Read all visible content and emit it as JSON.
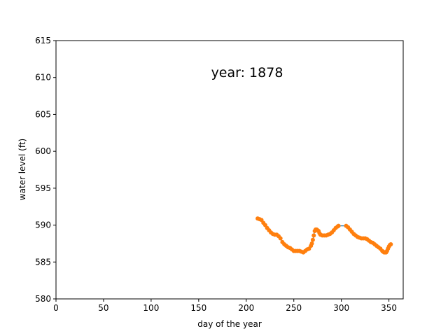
{
  "chart_data": {
    "type": "scatter",
    "title": "",
    "annotation": "year: 1878",
    "xlabel": "day of the year",
    "ylabel": "water level (ft)",
    "xlim": [
      0,
      365
    ],
    "ylim": [
      580,
      615
    ],
    "xticks": [
      0,
      50,
      100,
      150,
      200,
      250,
      300,
      350
    ],
    "yticks": [
      580,
      585,
      590,
      595,
      600,
      605,
      610,
      615
    ],
    "grid": false,
    "legend": "none",
    "marker_color": "#ff7f0e",
    "line_color": "#1f77b4",
    "series": [
      {
        "x": [
          212,
          214,
          216,
          218,
          220,
          222,
          224,
          226,
          228,
          230,
          232,
          234,
          236,
          238,
          240,
          242,
          244,
          246,
          248,
          250,
          252,
          254,
          256,
          258,
          260,
          262,
          264,
          266,
          268,
          269,
          270,
          271,
          272,
          273,
          274,
          275,
          276,
          277,
          278,
          280,
          282,
          284,
          286,
          288,
          290,
          292,
          294,
          296,
          297,
          305,
          307,
          309,
          311,
          313,
          315,
          317,
          319,
          321,
          323,
          325,
          327,
          329,
          331,
          333,
          335,
          337,
          339,
          341,
          343,
          344,
          345,
          346,
          347,
          348,
          349,
          350,
          351,
          352
        ],
        "y": [
          590.9,
          590.8,
          590.7,
          590.3,
          590.0,
          589.6,
          589.3,
          589.0,
          588.8,
          588.7,
          588.7,
          588.5,
          588.2,
          587.7,
          587.4,
          587.2,
          587.0,
          586.9,
          586.7,
          586.5,
          586.5,
          586.5,
          586.5,
          586.4,
          586.3,
          586.5,
          586.7,
          586.8,
          587.2,
          587.5,
          588.0,
          588.6,
          589.2,
          589.4,
          589.4,
          589.3,
          589.2,
          588.9,
          588.7,
          588.6,
          588.6,
          588.6,
          588.7,
          588.8,
          589.0,
          589.3,
          589.6,
          589.8,
          589.9,
          589.9,
          589.7,
          589.4,
          589.1,
          588.8,
          588.6,
          588.4,
          588.3,
          588.2,
          588.2,
          588.2,
          588.1,
          587.9,
          587.7,
          587.6,
          587.4,
          587.2,
          587.0,
          586.8,
          586.5,
          586.4,
          586.3,
          586.3,
          586.3,
          586.5,
          586.8,
          587.1,
          587.3,
          587.4
        ]
      }
    ]
  }
}
